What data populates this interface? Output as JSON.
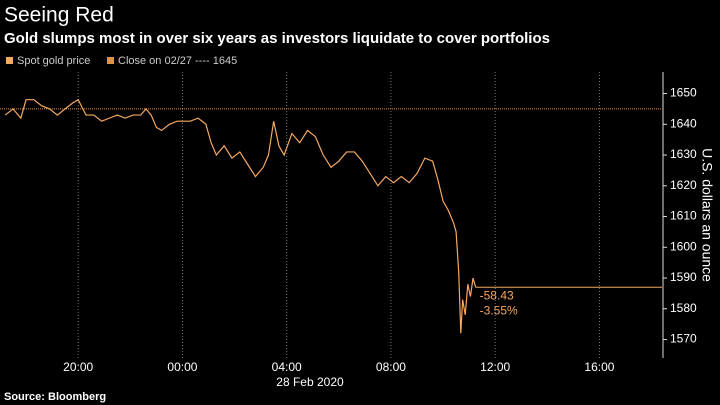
{
  "chart_data": {
    "type": "line",
    "title": "Seeing Red",
    "subtitle": "Gold slumps most in over six years as investors liquidate to cover portfolios",
    "ylabel": "U.S. dollars an ounce",
    "xlabel": "28 Feb 2020",
    "source": "Source: Bloomberg",
    "x": [
      -6.8,
      -6.5,
      -6.2,
      -6.0,
      -5.7,
      -5.4,
      -5.1,
      -4.8,
      -4.5,
      -4.2,
      -4.0,
      -3.7,
      -3.4,
      -3.1,
      -2.8,
      -2.5,
      -2.2,
      -1.9,
      -1.6,
      -1.4,
      -1.2,
      -1.0,
      -0.8,
      -0.5,
      -0.2,
      0.3,
      0.6,
      0.9,
      1.1,
      1.3,
      1.6,
      1.9,
      2.2,
      2.5,
      2.8,
      3.1,
      3.3,
      3.5,
      3.7,
      3.9,
      4.2,
      4.5,
      4.8,
      5.1,
      5.4,
      5.7,
      6.0,
      6.3,
      6.6,
      6.9,
      7.2,
      7.5,
      7.8,
      8.1,
      8.4,
      8.7,
      9.0,
      9.3,
      9.6,
      9.8,
      10.0,
      10.2,
      10.4,
      10.5,
      10.6,
      10.68,
      10.75,
      10.85,
      10.95,
      11.05,
      11.15,
      11.25
    ],
    "series": [
      {
        "name": "Spot gold price",
        "color": "#f4a862",
        "values": [
          1643,
          1645,
          1642,
          1648,
          1648,
          1646,
          1645,
          1643,
          1645,
          1647,
          1648,
          1643,
          1643,
          1641,
          1642,
          1643,
          1642,
          1643,
          1643,
          1645,
          1643,
          1639,
          1638,
          1640,
          1641,
          1641,
          1642,
          1640,
          1634,
          1630,
          1633,
          1629,
          1631,
          1627,
          1623,
          1626,
          1630,
          1641,
          1633,
          1630,
          1637,
          1634,
          1638,
          1636,
          1630,
          1626,
          1628,
          1631,
          1631,
          1628,
          1624,
          1620,
          1623,
          1621,
          1623,
          1621,
          1624,
          1629,
          1628,
          1622,
          1615,
          1612,
          1608,
          1605,
          1592,
          1572,
          1583,
          1578,
          1588,
          1584,
          1590,
          1587
        ]
      }
    ],
    "close": {
      "label": "Close on 02/27 ---- 1645",
      "value": 1645,
      "color": "#e8913a"
    },
    "annotations": [
      "-58.43",
      "-3.55%"
    ],
    "xlim": [
      -7,
      18.4
    ],
    "ylim": [
      1564,
      1657
    ],
    "xticks": [
      {
        "value": -4,
        "label": "20:00"
      },
      {
        "value": 0,
        "label": "00:00"
      },
      {
        "value": 4,
        "label": "04:00"
      },
      {
        "value": 8,
        "label": "08:00"
      },
      {
        "value": 12,
        "label": "12:00"
      },
      {
        "value": 16,
        "label": "16:00"
      }
    ],
    "yticks": [
      1570,
      1580,
      1590,
      1600,
      1610,
      1620,
      1630,
      1640,
      1650
    ],
    "grid": true
  }
}
